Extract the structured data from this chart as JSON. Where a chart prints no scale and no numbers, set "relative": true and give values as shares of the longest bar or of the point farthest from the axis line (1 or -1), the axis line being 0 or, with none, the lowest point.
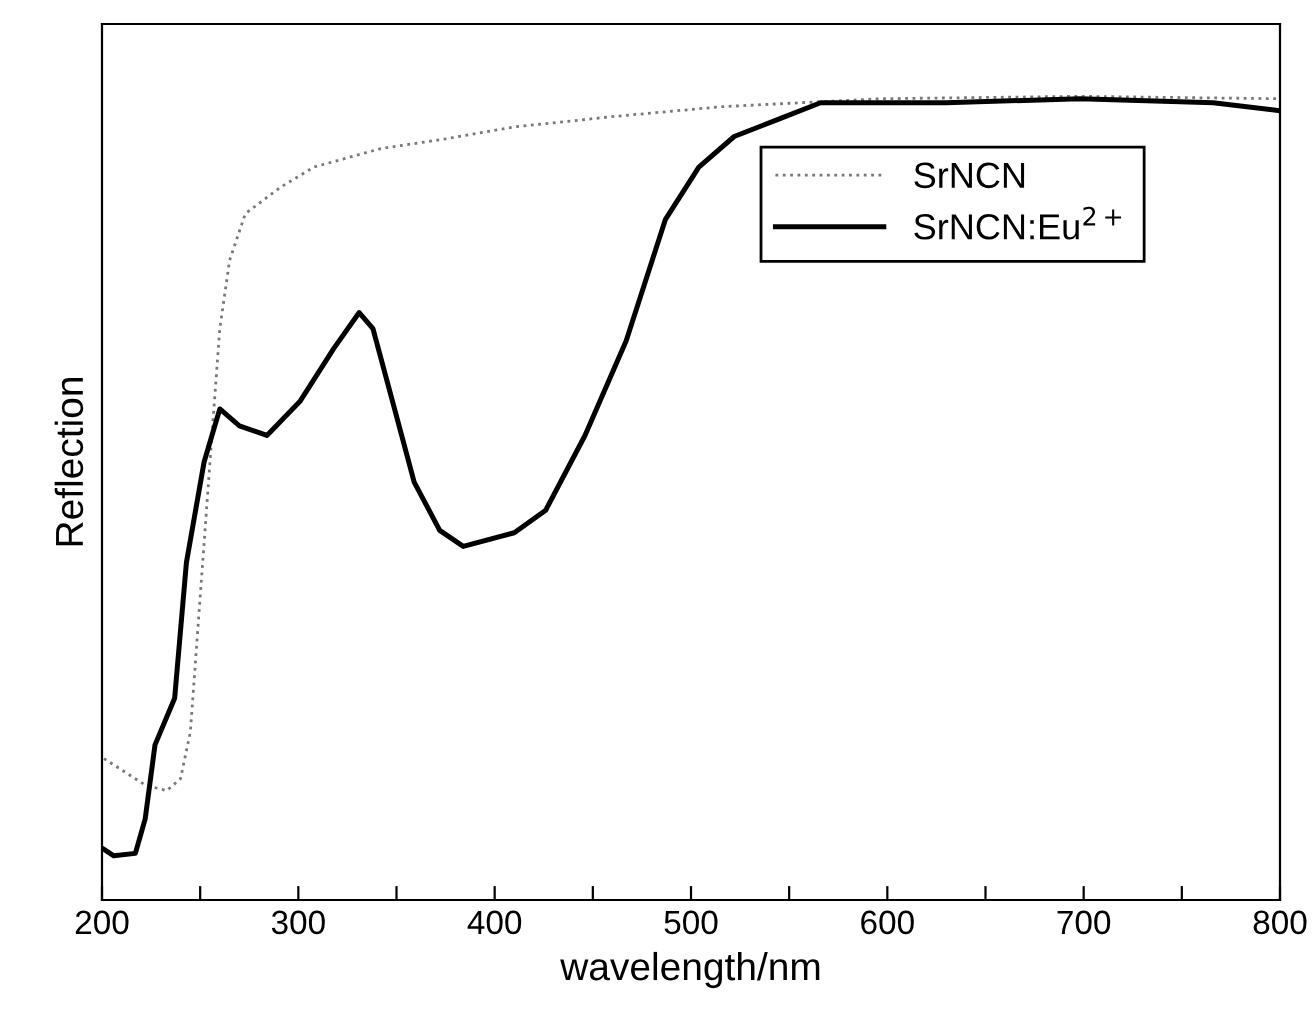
{
  "chart_data": {
    "type": "line",
    "relative": true,
    "xlabel": "wavelength/nm",
    "ylabel": "Reflection",
    "xlim": [
      200,
      800
    ],
    "xticks": [
      200,
      {
        "value": 250,
        "label": null
      },
      300,
      {
        "value": 350,
        "label": null
      },
      400,
      {
        "value": 450,
        "label": null
      },
      500,
      {
        "value": 550,
        "label": null
      },
      600,
      {
        "value": 650,
        "label": null
      },
      700,
      {
        "value": 750,
        "label": null
      },
      800
    ],
    "legend": "top right",
    "tick_labels": "x",
    "series": [
      {
        "name": "SrNCN",
        "color": "#777777",
        "line_style": "dotted",
        "x": [
          201,
          222,
          233,
          240,
          245,
          250,
          255,
          260,
          265,
          273,
          291,
          308,
          342,
          375,
          410,
          461,
          515,
          596,
          698,
          800
        ],
        "values": [
          0.176,
          0.143,
          0.136,
          0.151,
          0.209,
          0.377,
          0.545,
          0.711,
          0.796,
          0.854,
          0.887,
          0.912,
          0.935,
          0.947,
          0.962,
          0.975,
          0.987,
          0.997,
          1,
          0.997
        ]
      },
      {
        "name": "SrNCN:Eu$^{2+}$",
        "color": "#000000",
        "line_style": "solid",
        "x": [
          201,
          206,
          217,
          222,
          227,
          237,
          243,
          252,
          260,
          270,
          284,
          301,
          318,
          331,
          338,
          349,
          359,
          372,
          384,
          410,
          426,
          446,
          467,
          487,
          504,
          522,
          545,
          566,
          630,
          698,
          766,
          800
        ],
        "values": [
          0.063,
          0.055,
          0.058,
          0.101,
          0.193,
          0.251,
          0.42,
          0.545,
          0.611,
          0.59,
          0.578,
          0.621,
          0.686,
          0.731,
          0.711,
          0.611,
          0.52,
          0.46,
          0.44,
          0.457,
          0.485,
          0.578,
          0.696,
          0.847,
          0.912,
          0.95,
          0.972,
          0.992,
          0.992,
          0.997,
          0.992,
          0.982
        ]
      }
    ]
  }
}
